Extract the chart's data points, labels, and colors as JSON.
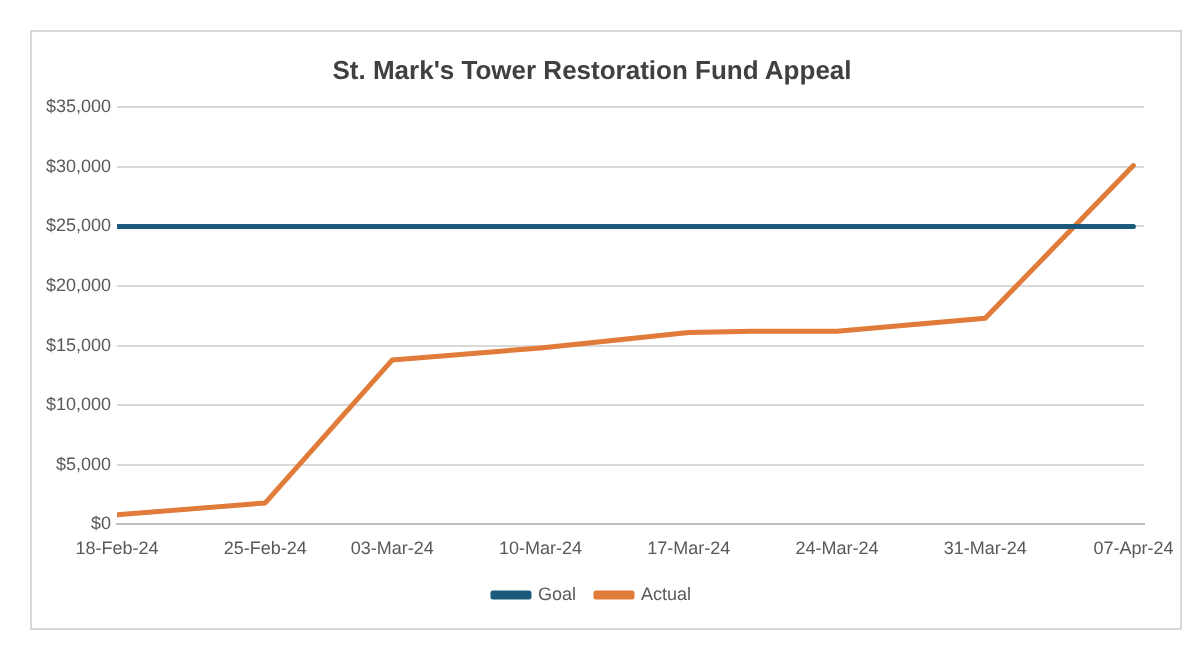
{
  "chart_data": {
    "type": "line",
    "title": "St. Mark's Tower Restoration Fund Appeal",
    "series": [
      {
        "name": "Goal",
        "color": "#1b5a7a",
        "x": [
          "--02-18",
          "--04-07"
        ],
        "values": [
          25000,
          25000
        ]
      },
      {
        "name": "Actual",
        "color": "#e07b39",
        "x": [
          "--02-18",
          "--02-25",
          "--03-03",
          "--03-10",
          "--03-17",
          "--03-20",
          "--03-24",
          "--03-31",
          "--04-07"
        ],
        "values": [
          800,
          1800,
          13800,
          14800,
          16100,
          16200,
          16200,
          17300,
          30100
        ]
      }
    ],
    "xlim": [
      "--02-18",
      "--04-07T12:00"
    ],
    "xticks": [
      {
        "value": "--02-18",
        "label": "18-Feb-24"
      },
      {
        "value": "--02-25",
        "label": "25-Feb-24"
      },
      {
        "value": "--03-03",
        "label": "03-Mar-24"
      },
      {
        "value": "--03-10",
        "label": "10-Mar-24"
      },
      {
        "value": "--03-17",
        "label": "17-Mar-24"
      },
      {
        "value": "--03-24",
        "label": "24-Mar-24"
      },
      {
        "value": "--03-31",
        "label": "31-Mar-24"
      },
      {
        "value": "--04-07",
        "label": "07-Apr-24"
      }
    ],
    "ylim": [
      0,
      35000
    ],
    "yticks": [
      {
        "value": 0,
        "label": "$0"
      },
      {
        "value": 5000,
        "label": "$5,000"
      },
      {
        "value": 10000,
        "label": "$10,000"
      },
      {
        "value": 15000,
        "label": "$15,000"
      },
      {
        "value": 20000,
        "label": "$20,000"
      },
      {
        "value": 25000,
        "label": "$25,000"
      },
      {
        "value": 30000,
        "label": "$30,000"
      },
      {
        "value": 35000,
        "label": "$35,000"
      }
    ],
    "grid": "y",
    "legend": "bottom",
    "marker": "none",
    "line_style": "solid"
  }
}
